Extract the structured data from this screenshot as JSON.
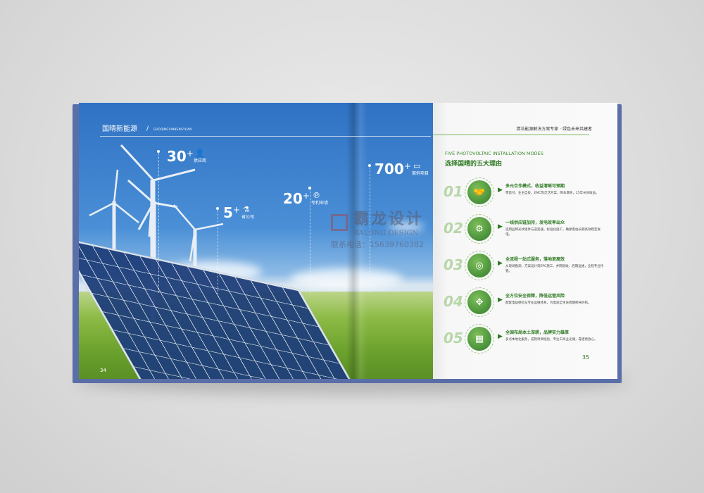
{
  "left_page": {
    "brand": "国晴新能源",
    "brand_en": "GUOQINGXINNENGYUAN",
    "separator": "/",
    "stats": [
      {
        "number": "30",
        "suffix": "+",
        "label": "供应商",
        "icon": "user-icon"
      },
      {
        "number": "5",
        "suffix": "+",
        "label": "省公司",
        "icon": "flask-icon"
      },
      {
        "number": "20",
        "suffix": "+",
        "label": "专利申请",
        "icon": "patent-icon"
      },
      {
        "number": "700",
        "suffix": "+",
        "label": "案例项目",
        "icon": "folder-icon"
      }
    ],
    "page_number": "34"
  },
  "right_page": {
    "tagline": "清洁能源解决方案专家 · 绿色未来共建者",
    "heading_en": "FIVE PHOTOVOLTAIC INSTALLATION MODES",
    "heading_cn": "选择国晴的五大理由",
    "items": [
      {
        "no": "01",
        "icon": "handshake-icon",
        "glyph": "🤝",
        "title": "多元合作模式，收益清晰可预期",
        "desc": "零首付、业主自投、EMC等灵活方案，降本增效，25年长效收益。"
      },
      {
        "no": "02",
        "icon": "factory-icon",
        "glyph": "⚙",
        "title": "一线供应链加持，发电效率出众",
        "desc": "选用品牌光伏组件与逆变器，标准化施工，确保电站长期高效稳定发电。"
      },
      {
        "no": "03",
        "icon": "network-icon",
        "glyph": "◎",
        "title": "全流程一站式服务，落地更高效",
        "desc": "从现场勘测、方案设计到EPC施工、并网验收、后期运维，全程专业托管。"
      },
      {
        "no": "04",
        "icon": "shield-network-icon",
        "glyph": "✥",
        "title": "全方位安全保障，降低运营风险",
        "desc": "配套电站保险与专业运维体系，为电站全生命周期保驾护航。"
      },
      {
        "no": "05",
        "icon": "building-badge-icon",
        "glyph": "▦",
        "title": "全国布局本土深耕，品牌实力雄厚",
        "desc": "多点本地化服务，成熟项目经验，专注工商业光储，靠谱更放心。"
      }
    ],
    "page_number": "35"
  },
  "watermark": {
    "cn": "霸龙设计",
    "en": "BALONG DESIGN",
    "contact": "联系电话：15639760382"
  },
  "colors": {
    "accent_green": "#2e7a22",
    "sky_blue": "#2f72c4",
    "cover_blue": "#5a6ea8"
  }
}
